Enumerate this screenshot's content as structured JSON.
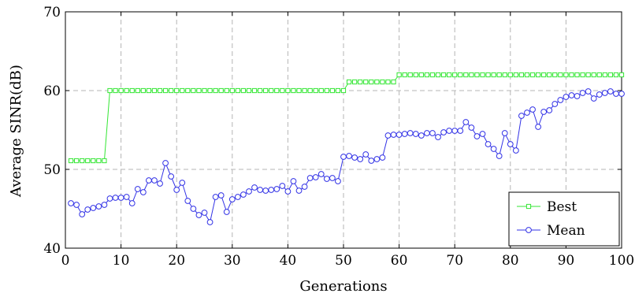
{
  "chart_data": {
    "type": "line",
    "title": "",
    "xlabel": "Generations",
    "ylabel": "Average SINR(dB)",
    "xlim": [
      0,
      100
    ],
    "ylim": [
      40,
      70
    ],
    "xticks": [
      0,
      10,
      20,
      30,
      40,
      50,
      60,
      70,
      80,
      90,
      100
    ],
    "yticks": [
      40,
      50,
      60,
      70
    ],
    "grid": true,
    "legend_position": "bottom-right",
    "series": [
      {
        "name": "Best",
        "color": "#33e633",
        "marker": "square",
        "x": [
          1,
          2,
          3,
          4,
          5,
          6,
          7,
          8,
          9,
          10,
          11,
          12,
          13,
          14,
          15,
          16,
          17,
          18,
          19,
          20,
          21,
          22,
          23,
          24,
          25,
          26,
          27,
          28,
          29,
          30,
          31,
          32,
          33,
          34,
          35,
          36,
          37,
          38,
          39,
          40,
          41,
          42,
          43,
          44,
          45,
          46,
          47,
          48,
          49,
          50,
          51,
          52,
          53,
          54,
          55,
          56,
          57,
          58,
          59,
          60,
          61,
          62,
          63,
          64,
          65,
          66,
          67,
          68,
          69,
          70,
          71,
          72,
          73,
          74,
          75,
          76,
          77,
          78,
          79,
          80,
          81,
          82,
          83,
          84,
          85,
          86,
          87,
          88,
          89,
          90,
          91,
          92,
          93,
          94,
          95,
          96,
          97,
          98,
          99,
          100
        ],
        "values": [
          51.1,
          51.1,
          51.1,
          51.1,
          51.1,
          51.1,
          51.1,
          60.0,
          60.0,
          60.0,
          60.0,
          60.0,
          60.0,
          60.0,
          60.0,
          60.0,
          60.0,
          60.0,
          60.0,
          60.0,
          60.0,
          60.0,
          60.0,
          60.0,
          60.0,
          60.0,
          60.0,
          60.0,
          60.0,
          60.0,
          60.0,
          60.0,
          60.0,
          60.0,
          60.0,
          60.0,
          60.0,
          60.0,
          60.0,
          60.0,
          60.0,
          60.0,
          60.0,
          60.0,
          60.0,
          60.0,
          60.0,
          60.0,
          60.0,
          60.0,
          61.1,
          61.1,
          61.1,
          61.1,
          61.1,
          61.1,
          61.1,
          61.1,
          61.1,
          62.0,
          62.0,
          62.0,
          62.0,
          62.0,
          62.0,
          62.0,
          62.0,
          62.0,
          62.0,
          62.0,
          62.0,
          62.0,
          62.0,
          62.0,
          62.0,
          62.0,
          62.0,
          62.0,
          62.0,
          62.0,
          62.0,
          62.0,
          62.0,
          62.0,
          62.0,
          62.0,
          62.0,
          62.0,
          62.0,
          62.0,
          62.0,
          62.0,
          62.0,
          62.0,
          62.0,
          62.0,
          62.0,
          62.0,
          62.0,
          62.0
        ]
      },
      {
        "name": "Mean",
        "color": "#3333e6",
        "marker": "circle",
        "x": [
          1,
          2,
          3,
          4,
          5,
          6,
          7,
          8,
          9,
          10,
          11,
          12,
          13,
          14,
          15,
          16,
          17,
          18,
          19,
          20,
          21,
          22,
          23,
          24,
          25,
          26,
          27,
          28,
          29,
          30,
          31,
          32,
          33,
          34,
          35,
          36,
          37,
          38,
          39,
          40,
          41,
          42,
          43,
          44,
          45,
          46,
          47,
          48,
          49,
          50,
          51,
          52,
          53,
          54,
          55,
          56,
          57,
          58,
          59,
          60,
          61,
          62,
          63,
          64,
          65,
          66,
          67,
          68,
          69,
          70,
          71,
          72,
          73,
          74,
          75,
          76,
          77,
          78,
          79,
          80,
          81,
          82,
          83,
          84,
          85,
          86,
          87,
          88,
          89,
          90,
          91,
          92,
          93,
          94,
          95,
          96,
          97,
          98,
          99,
          100
        ],
        "values": [
          45.7,
          45.5,
          44.3,
          44.9,
          45.1,
          45.3,
          45.5,
          46.3,
          46.4,
          46.4,
          46.5,
          45.7,
          47.5,
          47.1,
          48.6,
          48.6,
          48.2,
          50.8,
          49.1,
          47.4,
          48.3,
          46.0,
          45.0,
          44.2,
          44.5,
          43.3,
          46.5,
          46.7,
          44.6,
          46.2,
          46.5,
          46.8,
          47.2,
          47.7,
          47.4,
          47.3,
          47.4,
          47.5,
          47.9,
          47.2,
          48.5,
          47.3,
          47.8,
          48.9,
          49.0,
          49.4,
          48.8,
          48.9,
          48.5,
          51.6,
          51.7,
          51.5,
          51.3,
          51.9,
          51.1,
          51.3,
          51.5,
          54.3,
          54.4,
          54.4,
          54.5,
          54.6,
          54.5,
          54.3,
          54.6,
          54.6,
          54.1,
          54.7,
          54.9,
          54.9,
          54.9,
          56.0,
          55.3,
          54.2,
          54.5,
          53.2,
          52.6,
          51.7,
          54.6,
          53.2,
          52.4,
          56.8,
          57.2,
          57.6,
          55.4,
          57.3,
          57.5,
          58.3,
          58.8,
          59.2,
          59.4,
          59.3,
          59.7,
          59.9,
          59.0,
          59.5,
          59.7,
          59.9,
          59.6,
          59.6
        ]
      }
    ]
  }
}
